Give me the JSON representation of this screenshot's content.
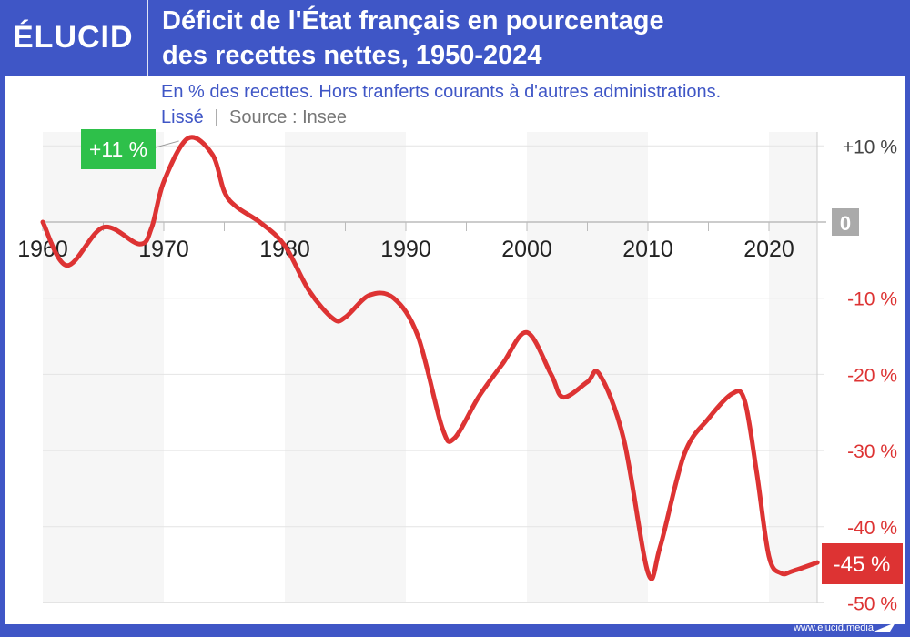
{
  "header": {
    "logo": "ÉLUCID",
    "title_line1": "Déficit de l'État français en pourcentage",
    "title_line2": "des recettes nettes, 1950-2024"
  },
  "subtitle": {
    "line1": "En % des recettes. Hors tranferts courants à d'autres administrations.",
    "smoothed": "Lissé",
    "separator": "|",
    "source": "Source : Insee"
  },
  "footer": {
    "url": "www.elucid.media"
  },
  "colors": {
    "brand": "#3f56c6",
    "line": "#dd3333",
    "positive_label": "#2ec04a",
    "negative_label": "#dd3333",
    "zero_label": "#aaaaaa"
  },
  "chart_data": {
    "type": "line",
    "title": "Déficit de l'État français en pourcentage des recettes nettes, 1950-2024",
    "xlim": [
      1960,
      2024
    ],
    "ylim": [
      -50,
      12
    ],
    "x_ticks": [
      "1960",
      "1970",
      "1980",
      "1990",
      "2000",
      "2010",
      "2020"
    ],
    "y_ticks": [
      {
        "value": 10,
        "label": "+10 %"
      },
      {
        "value": 0,
        "label": "0"
      },
      {
        "value": -10,
        "label": "-10 %"
      },
      {
        "value": -20,
        "label": "-20 %"
      },
      {
        "value": -30,
        "label": "-30 %"
      },
      {
        "value": -40,
        "label": "-40 %"
      },
      {
        "value": -50,
        "label": "-50 %"
      }
    ],
    "grid": true,
    "annotations": [
      {
        "x": 1972,
        "y": 11,
        "label": "+11 %"
      },
      {
        "x": 2024,
        "y": -45,
        "label": "-45 %"
      }
    ],
    "x": [
      1960,
      1962,
      1965,
      1968,
      1969,
      1970,
      1972,
      1974,
      1975,
      1976,
      1978,
      1980,
      1982,
      1984,
      1985,
      1987,
      1989,
      1991,
      1993,
      1994,
      1996,
      1998,
      2000,
      2002,
      2003,
      2005,
      2006,
      2008,
      2010,
      2011,
      2013,
      2015,
      2017,
      2018,
      2019,
      2020,
      2021,
      2022,
      2024
    ],
    "y": [
      0,
      -5.7,
      -0.7,
      -2.9,
      -0.7,
      5.3,
      11,
      8.9,
      4,
      2,
      -0.1,
      -3.1,
      -9,
      -12.7,
      -12.5,
      -9.6,
      -10,
      -15,
      -27,
      -28.4,
      -23,
      -18.6,
      -14.5,
      -20,
      -23,
      -21,
      -20,
      -28.5,
      -46,
      -42.7,
      -30.5,
      -25.8,
      -22.5,
      -23.5,
      -33,
      -43.9,
      -46.1,
      -45.8,
      -44.7
    ]
  }
}
